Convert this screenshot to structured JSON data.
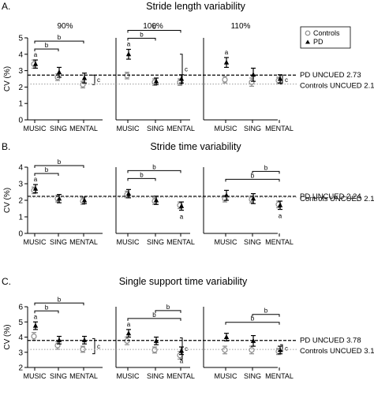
{
  "series_styles": {
    "controls": {
      "color": "#8c8c8c",
      "marker": "open-circle"
    },
    "pd": {
      "color": "#000000",
      "marker": "filled-triangle"
    },
    "pd_reference_line": {
      "color": "#000000",
      "dash": "dashed"
    },
    "controls_reference_line": {
      "color": "#9a9a9a",
      "dash": "dotted"
    }
  },
  "legend": {
    "placement": "top-right",
    "entries": [
      "Controls",
      "PD"
    ]
  },
  "chart_data": [
    {
      "type": "scatter",
      "panel_label": "A.",
      "title": "Stride length variability",
      "ylabel": "CV (%)",
      "ylim": [
        0,
        5
      ],
      "yticks": [
        "0",
        "1",
        "2",
        "3",
        "4",
        "5"
      ],
      "subplots": [
        {
          "condition": "90%",
          "categories": [
            "MUSIC",
            "SING",
            "MENTAL"
          ],
          "series": [
            {
              "name": "Controls",
              "values": [
                3.4,
                2.6,
                2.15
              ],
              "errors": [
                0.25,
                0.2,
                0.2
              ]
            },
            {
              "name": "PD",
              "values": [
                3.4,
                2.9,
                2.55
              ],
              "errors": [
                0.25,
                0.3,
                0.3
              ]
            }
          ],
          "brackets": [
            {
              "from": "MUSIC",
              "to": "SING",
              "label": "b"
            },
            {
              "from": "MUSIC",
              "to": "MENTAL",
              "label": "b"
            }
          ],
          "point_labels": [
            {
              "category": "MUSIC",
              "series": "PD",
              "label": "a"
            }
          ],
          "side_bracket": {
            "label": "c",
            "from": 2.15,
            "to": 2.73
          }
        },
        {
          "condition": "100%",
          "categories": [
            "MUSIC",
            "SING",
            "MENTAL"
          ],
          "series": [
            {
              "name": "Controls",
              "values": [
                2.7,
                2.3,
                2.3
              ],
              "errors": [
                0.2,
                0.2,
                0.2
              ]
            },
            {
              "name": "PD",
              "values": [
                4.0,
                2.35,
                2.5
              ],
              "errors": [
                0.3,
                0.2,
                0.25
              ]
            }
          ],
          "brackets": [
            {
              "from": "MUSIC",
              "to": "SING",
              "label": "b"
            },
            {
              "from": "MUSIC",
              "to": "MENTAL",
              "label": "b"
            }
          ],
          "point_labels": [
            {
              "category": "MUSIC",
              "series": "PD",
              "label": "a"
            }
          ],
          "side_bracket": {
            "label": "c",
            "from": 2.18,
            "to": 4.0
          }
        },
        {
          "condition": "110%",
          "categories": [
            "MUSIC",
            "SING",
            "MENTAL"
          ],
          "series": [
            {
              "name": "Controls",
              "values": [
                2.45,
                2.3,
                2.4
              ],
              "errors": [
                0.2,
                0.25,
                0.2
              ]
            },
            {
              "name": "PD",
              "values": [
                3.5,
                2.75,
                2.5
              ],
              "errors": [
                0.3,
                0.4,
                0.25
              ]
            }
          ],
          "brackets": [],
          "point_labels": [
            {
              "category": "MUSIC",
              "series": "PD",
              "label": "a"
            }
          ],
          "side_bracket": {
            "label": "c",
            "from": 2.18,
            "to": 2.73
          }
        }
      ],
      "reference_lines": [
        {
          "label": "PD UNCUED 2.73",
          "value": 2.73,
          "series": "PD"
        },
        {
          "label": "Controls UNCUED 2.18",
          "value": 2.18,
          "series": "Controls"
        }
      ]
    },
    {
      "type": "scatter",
      "panel_label": "B.",
      "title": "Stride time variability",
      "ylabel": "CV (%)",
      "ylim": [
        0,
        4
      ],
      "yticks": [
        "0",
        "1",
        "2",
        "3",
        "4"
      ],
      "subplots": [
        {
          "condition": "",
          "categories": [
            "MUSIC",
            "SING",
            "MENTAL"
          ],
          "series": [
            {
              "name": "Controls",
              "values": [
                2.6,
                2.1,
                1.95
              ],
              "errors": [
                0.2,
                0.2,
                0.2
              ]
            },
            {
              "name": "PD",
              "values": [
                2.7,
                2.1,
                2.0
              ],
              "errors": [
                0.25,
                0.25,
                0.2
              ]
            }
          ],
          "brackets": [
            {
              "from": "MUSIC",
              "to": "SING",
              "label": "b"
            },
            {
              "from": "MUSIC",
              "to": "MENTAL",
              "label": "b"
            }
          ],
          "point_labels": [
            {
              "category": "MUSIC",
              "series": "PD",
              "label": "a"
            }
          ],
          "side_bracket": null
        },
        {
          "condition": "",
          "categories": [
            "MUSIC",
            "SING",
            "MENTAL"
          ],
          "series": [
            {
              "name": "Controls",
              "values": [
                2.35,
                1.95,
                1.7
              ],
              "errors": [
                0.2,
                0.2,
                0.2
              ]
            },
            {
              "name": "PD",
              "values": [
                2.4,
                2.0,
                1.65
              ],
              "errors": [
                0.25,
                0.25,
                0.25
              ]
            }
          ],
          "brackets": [
            {
              "from": "MUSIC",
              "to": "SING",
              "label": "b"
            },
            {
              "from": "MUSIC",
              "to": "MENTAL",
              "label": "b"
            }
          ],
          "point_labels": [
            {
              "category": "MENTAL",
              "series": "PD",
              "label": "a"
            }
          ],
          "side_bracket": null
        },
        {
          "condition": "",
          "categories": [
            "MUSIC",
            "SING",
            "MENTAL"
          ],
          "series": [
            {
              "name": "Controls",
              "values": [
                2.1,
                2.05,
                1.75
              ],
              "errors": [
                0.2,
                0.2,
                0.2
              ]
            },
            {
              "name": "PD",
              "values": [
                2.3,
                2.1,
                1.7
              ],
              "errors": [
                0.3,
                0.3,
                0.25
              ]
            }
          ],
          "brackets": [
            {
              "from": "MUSIC",
              "to": "MENTAL",
              "label": "b"
            },
            {
              "from": "SING",
              "to": "MENTAL",
              "label": "b"
            }
          ],
          "point_labels": [
            {
              "category": "MENTAL",
              "series": "PD",
              "label": "a"
            }
          ],
          "side_bracket": null
        }
      ],
      "reference_lines": [
        {
          "label": "PD UNCUED 2.24",
          "value": 2.24,
          "series": "PD"
        },
        {
          "label": "Controls UNCUED 2.19",
          "value": 2.19,
          "series": "Controls"
        }
      ]
    },
    {
      "type": "scatter",
      "panel_label": "C.",
      "title": "Single support time variability",
      "ylabel": "CV (%)",
      "ylim": [
        2,
        6
      ],
      "yticks": [
        "2",
        "3",
        "4",
        "5",
        "6"
      ],
      "subplots": [
        {
          "condition": "",
          "categories": [
            "MUSIC",
            "SING",
            "MENTAL"
          ],
          "series": [
            {
              "name": "Controls",
              "values": [
                4.05,
                3.45,
                3.2
              ],
              "errors": [
                0.25,
                0.25,
                0.2
              ]
            },
            {
              "name": "PD",
              "values": [
                4.75,
                3.8,
                3.8
              ],
              "errors": [
                0.25,
                0.25,
                0.25
              ]
            }
          ],
          "brackets": [
            {
              "from": "MUSIC",
              "to": "SING",
              "label": "b"
            },
            {
              "from": "MUSIC",
              "to": "MENTAL",
              "label": "b"
            }
          ],
          "point_labels": [
            {
              "category": "MUSIC",
              "series": "PD",
              "label": "a"
            }
          ],
          "side_bracket": {
            "label": "c",
            "from": 2.9,
            "to": 3.9
          }
        },
        {
          "condition": "",
          "categories": [
            "MUSIC",
            "SING",
            "MENTAL"
          ],
          "series": [
            {
              "name": "Controls",
              "values": [
                3.75,
                3.15,
                2.8
              ],
              "errors": [
                0.25,
                0.2,
                0.25
              ]
            },
            {
              "name": "PD",
              "values": [
                4.25,
                3.75,
                3.1
              ],
              "errors": [
                0.25,
                0.25,
                0.25
              ]
            }
          ],
          "brackets": [
            {
              "from": "MUSIC",
              "to": "MENTAL",
              "label": "b"
            },
            {
              "from": "SING",
              "to": "MENTAL",
              "label": "b"
            }
          ],
          "point_labels": [
            {
              "category": "MUSIC",
              "series": "PD",
              "label": "a"
            },
            {
              "category": "MENTAL",
              "series": "PD",
              "label": "a"
            }
          ],
          "side_bracket": {
            "label": "c",
            "from": 2.55,
            "to": 3.95
          }
        },
        {
          "condition": "",
          "categories": [
            "MUSIC",
            "SING",
            "MENTAL"
          ],
          "series": [
            {
              "name": "Controls",
              "values": [
                3.15,
                3.15,
                3.05
              ],
              "errors": [
                0.25,
                0.25,
                0.2
              ]
            },
            {
              "name": "PD",
              "values": [
                4.0,
                3.75,
                3.15
              ],
              "errors": [
                0.25,
                0.35,
                0.25
              ]
            }
          ],
          "brackets": [
            {
              "from": "MUSIC",
              "to": "MENTAL",
              "label": "b"
            },
            {
              "from": "SING",
              "to": "MENTAL",
              "label": "b"
            }
          ],
          "point_labels": [],
          "side_bracket": {
            "label": "c",
            "from": 3.05,
            "to": 3.5
          }
        }
      ],
      "reference_lines": [
        {
          "label": "PD UNCUED 3.78",
          "value": 3.78,
          "series": "PD"
        },
        {
          "label": "Controls UNCUED 3.19",
          "value": 3.19,
          "series": "Controls"
        }
      ]
    }
  ]
}
